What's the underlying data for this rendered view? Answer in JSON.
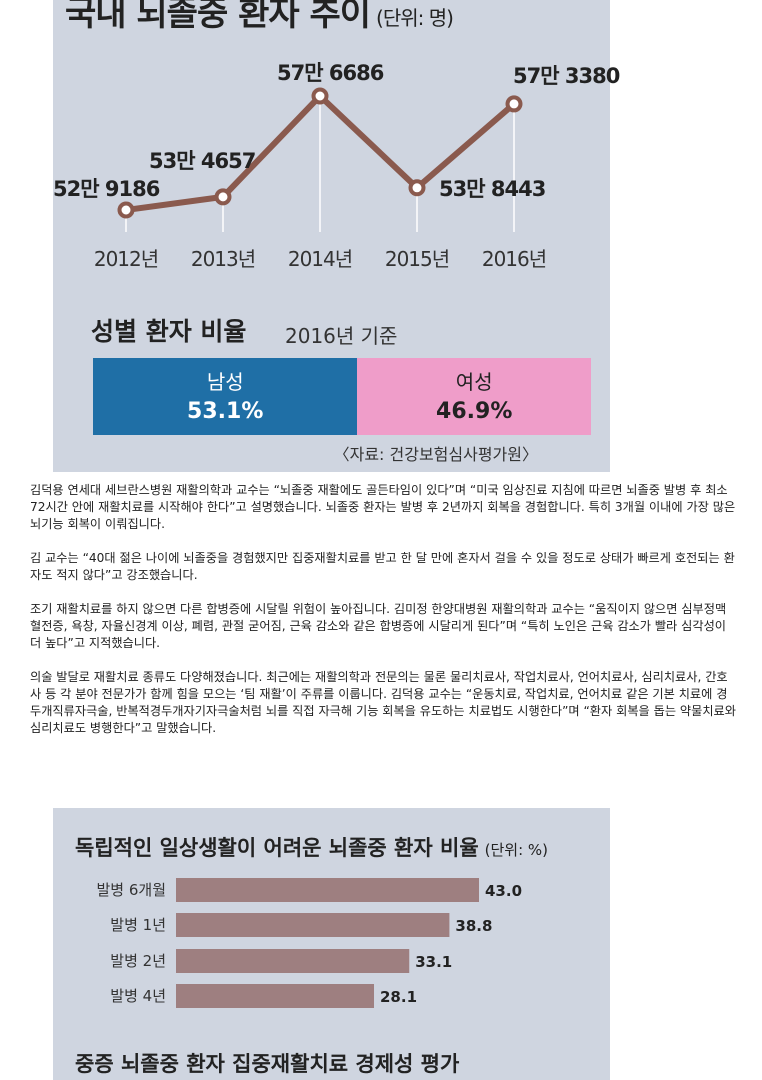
{
  "line_chart": {
    "title": "국내 뇌졸중 환자 추이",
    "unit": "(단위: 명)"
  },
  "gender": {
    "title": "성별 환자 비율",
    "subtitle": "2016년 기준",
    "male_label": "남성",
    "male_pct": "53.1%",
    "male_value": 53.1,
    "female_label": "여성",
    "female_pct": "46.9%",
    "female_value": 46.9,
    "source": "〈자료: 건강보험심사평가원〉",
    "colors": {
      "male": "#1f6fa6",
      "female": "#ef9dc9"
    }
  },
  "article": {
    "paragraphs": [
      "김덕용 연세대 세브란스병원 재활의학과 교수는 “뇌졸중 재활에도 골든타임이 있다”며 “미국 임상진료 지침에 따르면 뇌졸중 발병 후 최소 72시간 안에 재활치료를 시작해야 한다”고 설명했습니다. 뇌졸중 환자는 발병 후 2년까지 회복을 경험합니다. 특히 3개월 이내에 가장 많은 뇌기능 회복이 이뤄집니다.",
      "김 교수는 “40대 젊은 나이에 뇌졸중을 경험했지만 집중재활치료를 받고 한 달 만에 혼자서 걸을 수 있을 정도로 상태가 빠르게 호전되는 환자도 적지 않다”고 강조했습니다.",
      "조기 재활치료를 하지 않으면 다른 합병증에 시달릴 위험이 높아집니다. 김미정 한양대병원 재활의학과 교수는 “움직이지 않으면 심부정맥혈전증, 욕창, 자율신경계 이상, 폐렴, 관절 굳어짐, 근육 감소와 같은 합병증에 시달리게 된다”며 “특히 노인은 근육 감소가 빨라 심각성이 더 높다”고 지적했습니다.",
      "의술 발달로 재활치료 종류도 다양해졌습니다. 최근에는 재활의학과 전문의는 물론 물리치료사, 작업치료사, 언어치료사, 심리치료사, 간호사 등 각 분야 전문가가 함께 힘을 모으는 ‘팀 재활’이 주류를 이룹니다. 김덕용 교수는 “운동치료, 작업치료, 언어치료 같은 기본 치료에 경두개직류자극술, 반복적경두개자기자극술처럼 뇌를 직접 자극해 기능 회복을 유도하는 치료법도 시행한다”며 “환자 회복을 돕는 약물치료와 심리치료도 병행한다”고 말했습니다."
    ]
  },
  "bar_chart": {
    "title": "독립적인 일상생활이 어려운 뇌졸중 환자 비율",
    "unit": "(단위: %)"
  },
  "next_chart": {
    "title": "중증 뇌졸중 환자 집중재활치료 경제성 평가"
  },
  "chart_data": [
    {
      "type": "line",
      "title": "국내 뇌졸중 환자 추이",
      "unit": "명",
      "categories": [
        "2012년",
        "2013년",
        "2014년",
        "2015년",
        "2016년"
      ],
      "values": [
        529186,
        534657,
        576686,
        538443,
        573380
      ],
      "labels": [
        "52만 9186",
        "53만 4657",
        "57만 6686",
        "53만 8443",
        "57만 3380"
      ],
      "ylim": [
        520000,
        580000
      ],
      "colors": {
        "line": "#8a5a4e",
        "marker_fill": "#ffffff",
        "drop_line": "#ffffff"
      }
    },
    {
      "type": "bar",
      "orientation": "horizontal",
      "title": "독립적인 일상생활이 어려운 뇌졸중 환자 비율",
      "unit": "%",
      "categories": [
        "발병 6개월",
        "발병 1년",
        "발병 2년",
        "발병 4년"
      ],
      "values": [
        43.0,
        38.8,
        33.1,
        28.1
      ],
      "labels": [
        "43.0",
        "38.8",
        "33.1",
        "28.1"
      ],
      "xlim": [
        0,
        43
      ],
      "colors": {
        "bar": "#9e7f80"
      }
    }
  ]
}
